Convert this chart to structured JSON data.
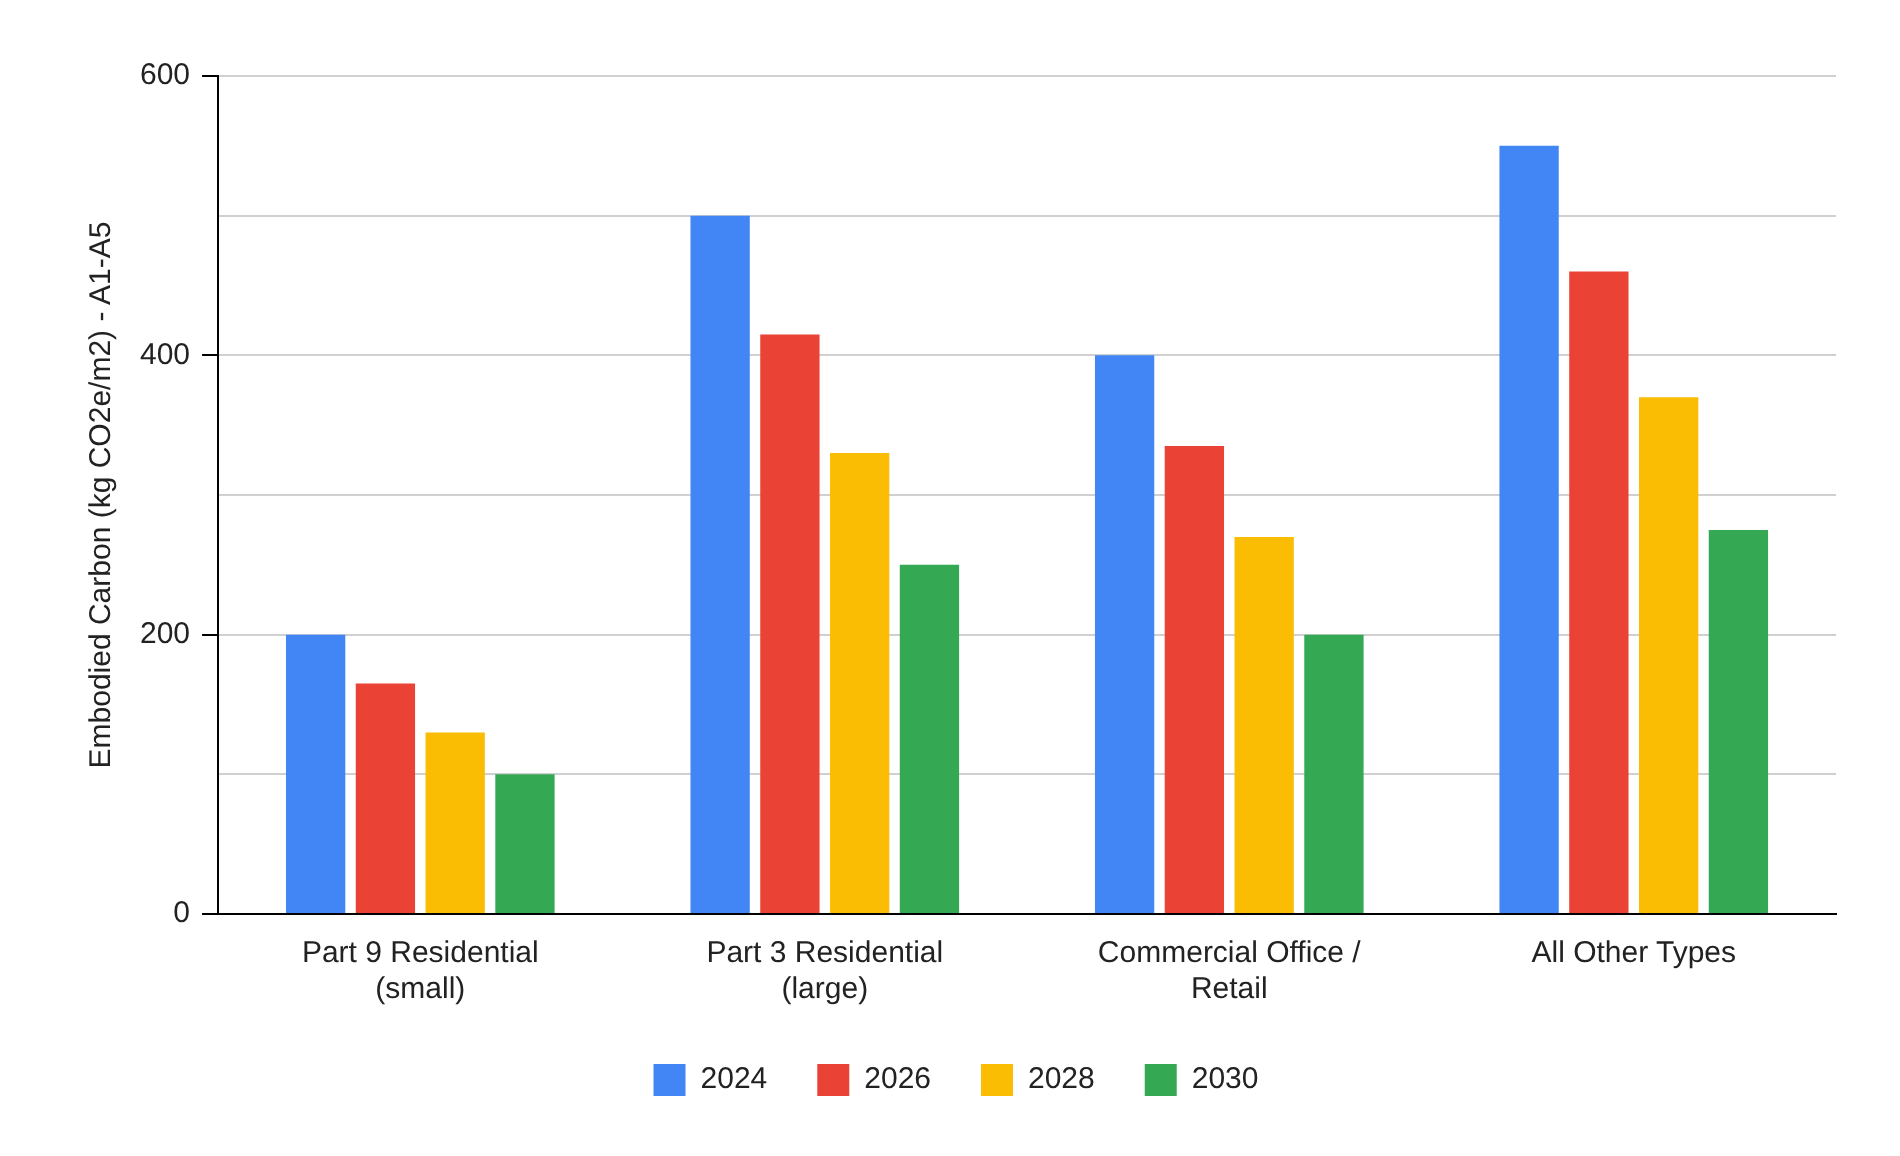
{
  "chart_data": {
    "type": "bar",
    "ylabel": "Embodied Carbon (kg CO2e/m2) - A1-A5",
    "categories": [
      "Part 9 Residential (small)",
      "Part 3 Residential (large)",
      "Commercial Office / Retail",
      "All Other Types"
    ],
    "series": [
      {
        "name": "2024",
        "color": "#4285f4",
        "values": [
          200,
          500,
          400,
          550
        ]
      },
      {
        "name": "2026",
        "color": "#ea4335",
        "values": [
          165,
          415,
          335,
          460
        ]
      },
      {
        "name": "2028",
        "color": "#fbbc04",
        "values": [
          130,
          330,
          270,
          370
        ]
      },
      {
        "name": "2030",
        "color": "#34a853",
        "values": [
          100,
          250,
          200,
          275
        ]
      }
    ],
    "ylim": [
      0,
      600
    ],
    "yticks": [
      0,
      {
        "value": 100,
        "label": null
      },
      200,
      {
        "value": 300,
        "label": null
      },
      400,
      {
        "value": 500,
        "label": null
      },
      600
    ],
    "grid": "y",
    "legend": "bottom"
  }
}
